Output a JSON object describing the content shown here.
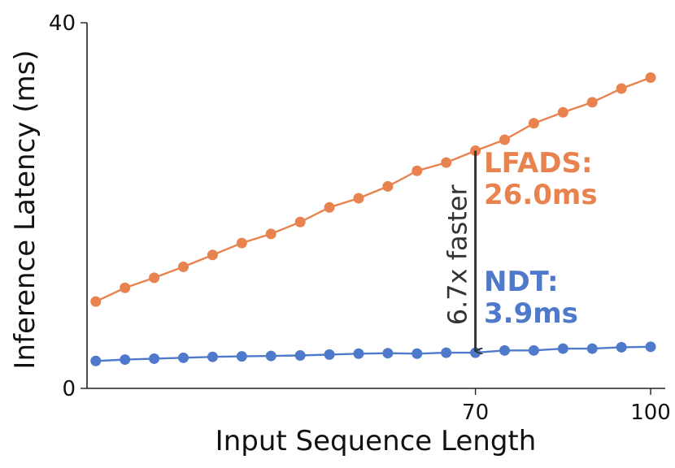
{
  "chart_data": {
    "type": "line",
    "xlabel": "Input Sequence Length",
    "ylabel": "Inference Latency (ms)",
    "ylim": [
      0,
      40
    ],
    "xlim": [
      3.5,
      102.5
    ],
    "x_ticks": [
      70,
      100
    ],
    "x_tick_labels": [
      "70",
      "100"
    ],
    "y_ticks": [
      0,
      40
    ],
    "y_tick_labels": [
      "0",
      "40"
    ],
    "grid": false,
    "x": [
      5,
      10,
      15,
      20,
      25,
      30,
      35,
      40,
      45,
      50,
      55,
      60,
      65,
      70,
      75,
      80,
      85,
      90,
      95,
      100
    ],
    "series": [
      {
        "name": "LFADS",
        "color": "#e8834f",
        "values": [
          9.5,
          11.0,
          12.1,
          13.3,
          14.6,
          15.9,
          16.9,
          18.2,
          19.8,
          20.8,
          22.1,
          23.8,
          24.7,
          26.0,
          27.2,
          29.0,
          30.2,
          31.3,
          32.8,
          34.0
        ]
      },
      {
        "name": "NDT",
        "color": "#4f7acb",
        "values": [
          3.0,
          3.15,
          3.25,
          3.35,
          3.45,
          3.5,
          3.55,
          3.6,
          3.7,
          3.8,
          3.85,
          3.8,
          3.9,
          3.9,
          4.15,
          4.15,
          4.35,
          4.35,
          4.5,
          4.55
        ]
      }
    ],
    "annotations": {
      "arrow_label": "6.7x faster",
      "arrow_x": 70,
      "arrow_from": 26.0,
      "arrow_to": 3.9,
      "lfads_label_line1": "LFADS:",
      "lfads_label_line2": "26.0ms",
      "ndt_label_line1": "NDT:",
      "ndt_label_line2": "3.9ms"
    }
  }
}
